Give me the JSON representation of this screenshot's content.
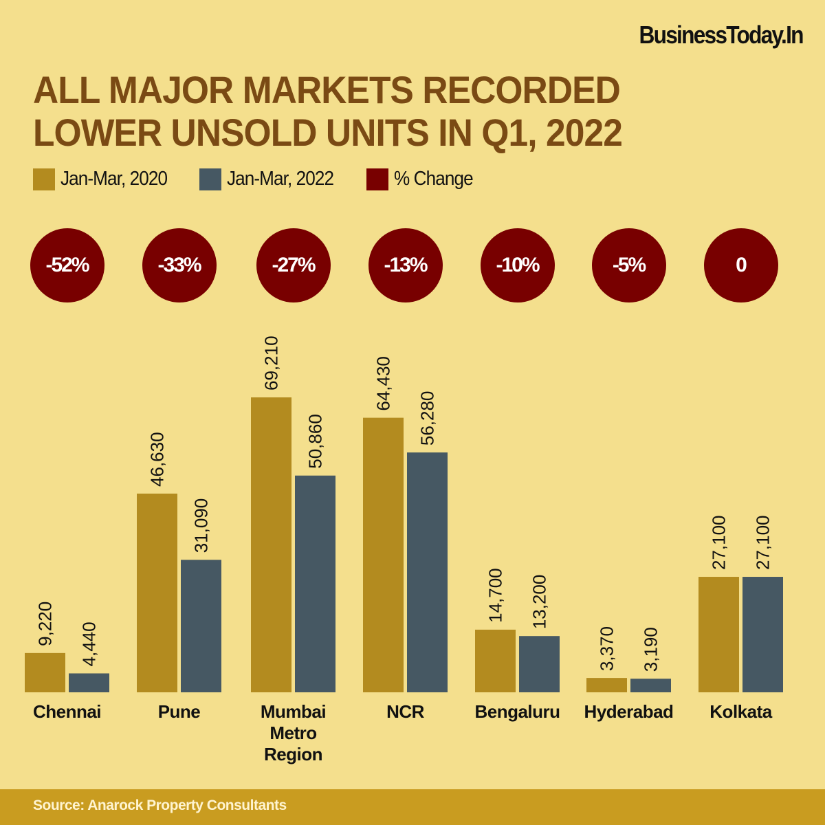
{
  "brand": "BusinessToday.In",
  "title_lines": [
    "ALL MAJOR MARKETS RECORDED",
    "LOWER UNSOLD UNITS IN Q1, 2022"
  ],
  "legend": [
    {
      "label": "Jan-Mar, 2020",
      "color": "#b38b1f"
    },
    {
      "label": "Jan-Mar, 2022",
      "color": "#465863"
    },
    {
      "label": "% Change",
      "color": "#780000"
    }
  ],
  "source": "Source: Anarock Property Consultants",
  "chart_data": {
    "type": "bar",
    "title": "All major markets recorded lower unsold units in Q1, 2022",
    "xlabel": "",
    "ylabel": "",
    "ylim": [
      0,
      69210
    ],
    "categories": [
      "Chennai",
      "Pune",
      "Mumbai Metro Region",
      "NCR",
      "Bengaluru",
      "Hyderabad",
      "Kolkata"
    ],
    "category_lines": [
      [
        "Chennai"
      ],
      [
        "Pune"
      ],
      [
        "Mumbai",
        "Metro",
        "Region"
      ],
      [
        "NCR"
      ],
      [
        "Bengaluru"
      ],
      [
        "Hyderabad"
      ],
      [
        "Kolkata"
      ]
    ],
    "series": [
      {
        "name": "Jan-Mar, 2020",
        "color": "#b38b1f",
        "values": [
          9220,
          46630,
          69210,
          64430,
          14700,
          3370,
          27100
        ],
        "labels": [
          "9,220",
          "46,630",
          "69,210",
          "64,430",
          "14,700",
          "3,370",
          "27,100"
        ]
      },
      {
        "name": "Jan-Mar, 2022",
        "color": "#465863",
        "values": [
          4440,
          31090,
          50860,
          56280,
          13200,
          3190,
          27100
        ],
        "labels": [
          "4,440",
          "31,090",
          "50,860",
          "56,280",
          "13,200",
          "3,190",
          "27,100"
        ]
      }
    ],
    "pct_change": [
      "-52%",
      "-33%",
      "-27%",
      "-13%",
      "-10%",
      "-5%",
      "0"
    ],
    "grid": false,
    "legend_position": "top-left"
  }
}
